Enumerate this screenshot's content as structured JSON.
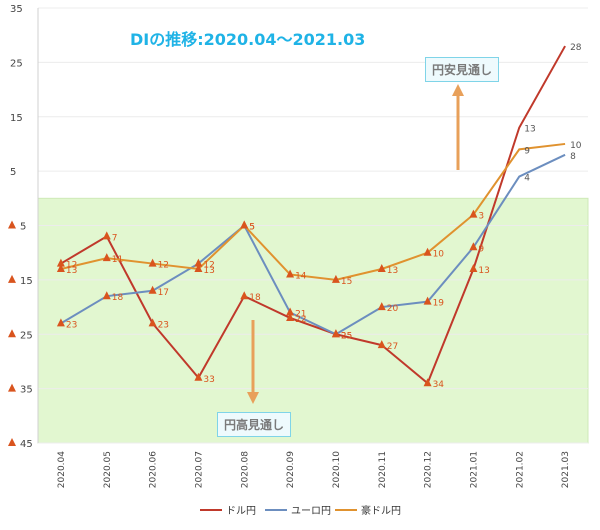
{
  "title": "DIの推移:2020.04～2021.03",
  "annotations": {
    "yen_weak": "円安見通し",
    "yen_strong": "円高見通し"
  },
  "colors": {
    "usd": "#c0392b",
    "eur": "#6c8ebf",
    "aud": "#e0922f",
    "up_zone": "#ffffff",
    "down_zone": "#e2f7d0",
    "marker": "#d9541e",
    "arrow": "#e8a05a"
  },
  "chart_data": {
    "type": "line",
    "categories": [
      "2020.04",
      "2020.05",
      "2020.06",
      "2020.07",
      "2020.08",
      "2020.09",
      "2020.10",
      "2020.11",
      "2020.12",
      "2021.01",
      "2021.02",
      "2021.03"
    ],
    "series": [
      {
        "name": "ドル円",
        "key": "usd",
        "values": [
          -12,
          -7,
          -23,
          -33,
          -18,
          -22,
          -25,
          -27,
          -34,
          -13,
          13,
          28
        ],
        "labels": [
          "12",
          "7",
          "23",
          "33",
          "18",
          "22",
          "25",
          "27",
          "34",
          "13",
          "13",
          "28"
        ]
      },
      {
        "name": "ユーロ円",
        "key": "eur",
        "values": [
          -23,
          -18,
          -17,
          -12,
          -5,
          -21,
          -25,
          -20,
          -19,
          -9,
          4,
          8
        ],
        "labels": [
          "23",
          "18",
          "17",
          "12",
          "5",
          "21",
          "25",
          "20",
          "19",
          "9",
          "4",
          "8"
        ]
      },
      {
        "name": "豪ドル円",
        "key": "aud",
        "values": [
          -13,
          -11,
          -12,
          -13,
          -5,
          -14,
          -15,
          -13,
          -10,
          -3,
          9,
          10
        ],
        "labels": [
          "13",
          "11",
          "12",
          "13",
          "5",
          "14",
          "15",
          "13",
          "10",
          "3",
          "9",
          "10"
        ]
      }
    ],
    "y_ticks": [
      {
        "value": 35,
        "label": "35"
      },
      {
        "value": 25,
        "label": "25"
      },
      {
        "value": 15,
        "label": "15"
      },
      {
        "value": 5,
        "label": "5"
      },
      {
        "value": -5,
        "label": "5"
      },
      {
        "value": -15,
        "label": "15"
      },
      {
        "value": -25,
        "label": "25"
      },
      {
        "value": -35,
        "label": "35"
      },
      {
        "value": -45,
        "label": "45"
      }
    ],
    "ylim": [
      -45,
      35
    ],
    "legend_position": "bottom"
  }
}
